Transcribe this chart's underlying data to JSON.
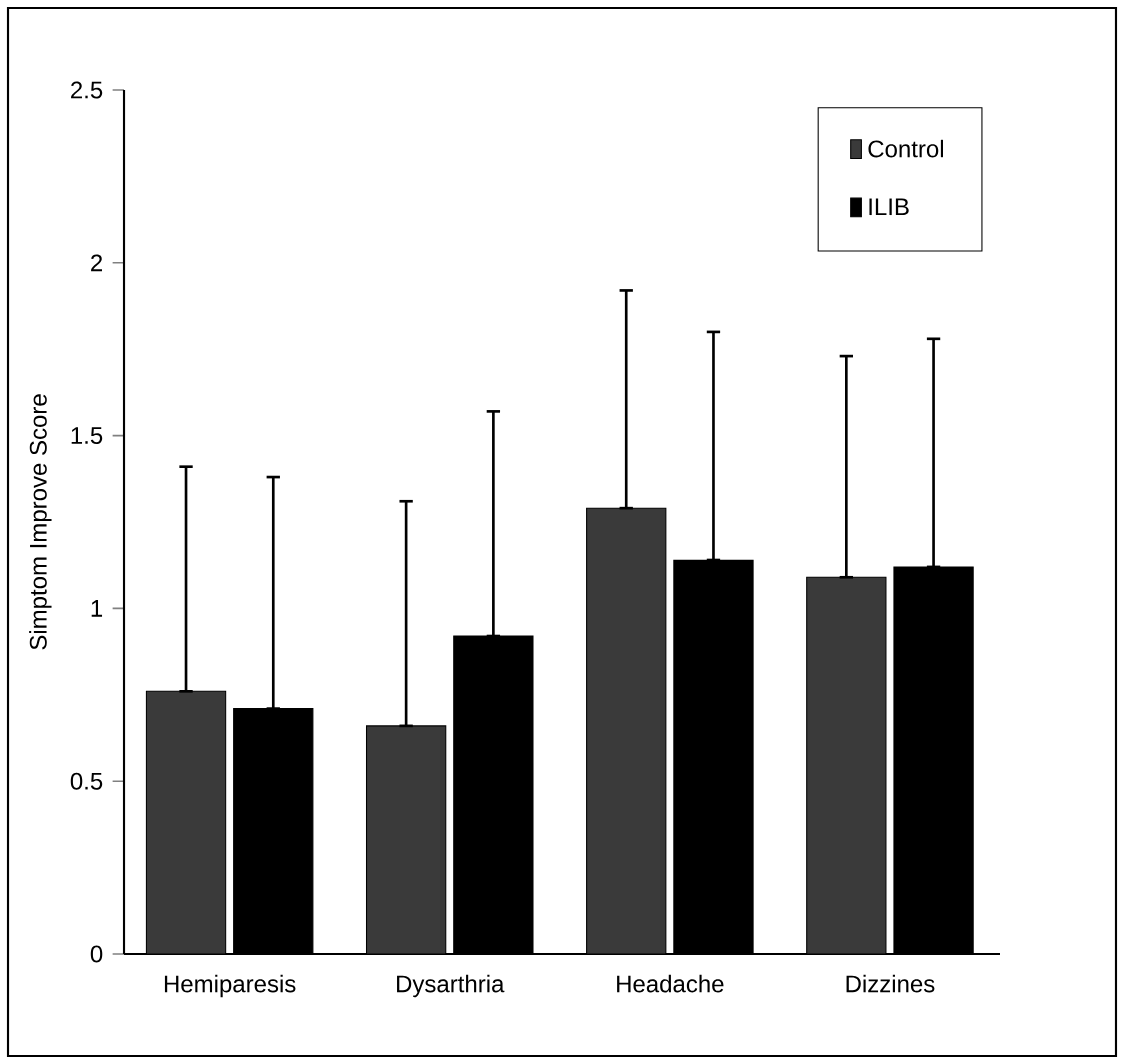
{
  "chart_data": {
    "type": "bar",
    "ylabel": "Simptom Improve Score",
    "categories": [
      "Hemiparesis",
      "Dysarthria",
      "Headache",
      "Dizzines"
    ],
    "series": [
      {
        "name": "Control",
        "color": "#3a3a3a",
        "values": [
          0.76,
          0.66,
          1.29,
          1.09
        ],
        "errors": [
          [
            0.76,
            1.41
          ],
          [
            0.66,
            1.31
          ],
          [
            1.29,
            1.92
          ],
          [
            1.09,
            1.73
          ]
        ]
      },
      {
        "name": "ILIB",
        "color": "#000000",
        "values": [
          0.71,
          0.92,
          1.14,
          1.12
        ],
        "errors": [
          [
            0.71,
            1.38
          ],
          [
            0.92,
            1.57
          ],
          [
            1.14,
            1.8
          ],
          [
            1.12,
            1.78
          ]
        ]
      }
    ],
    "ylim": [
      0,
      2.5
    ],
    "yticks": [
      0,
      {
        "value": 0.5,
        "label": "0.5"
      },
      1,
      {
        "value": 1.5,
        "label": "1.5"
      },
      2,
      {
        "value": 2.5,
        "label": "2.5"
      }
    ],
    "grid": false,
    "legend": "top right"
  }
}
